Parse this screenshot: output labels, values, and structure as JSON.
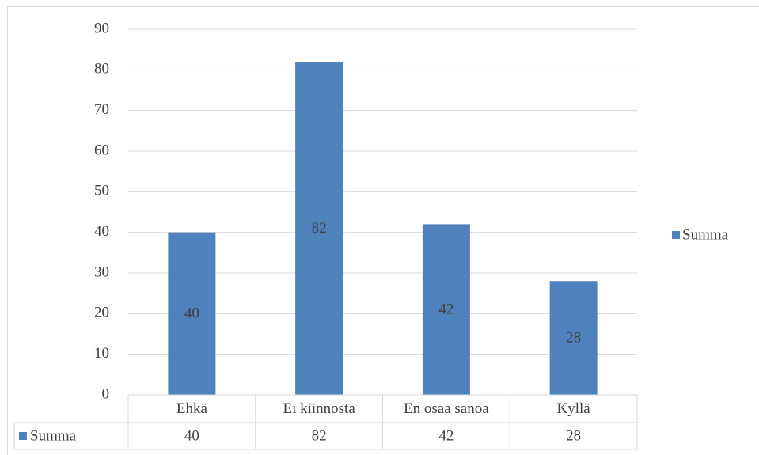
{
  "chart_data": {
    "type": "bar",
    "categories": [
      "Ehkä",
      "Ei kiinnosta",
      "En osaa sanoa",
      "Kyllä"
    ],
    "series": [
      {
        "name": "Summa",
        "color": "#4f81bd",
        "values": [
          40,
          82,
          42,
          28
        ]
      }
    ],
    "ylim": [
      0,
      90
    ],
    "yticks": [
      0,
      10,
      20,
      30,
      40,
      50,
      60,
      70,
      80,
      90
    ],
    "grid": true,
    "legend": "right",
    "data_table": true
  }
}
